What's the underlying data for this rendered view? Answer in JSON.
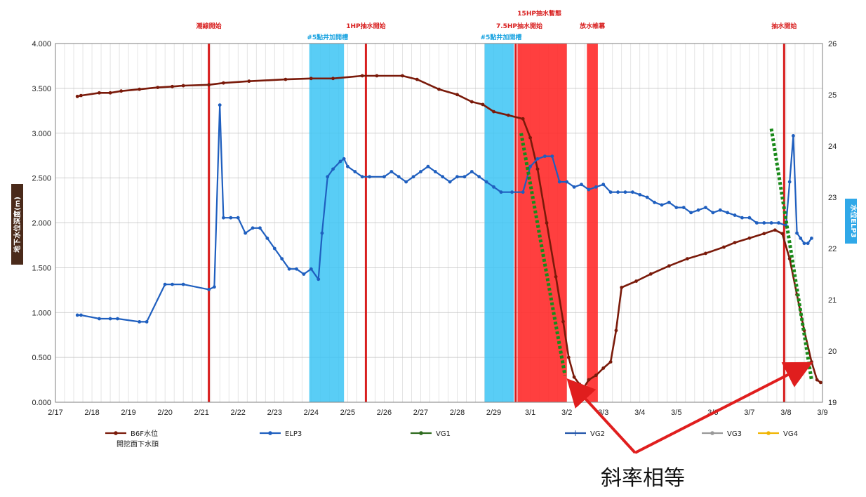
{
  "chart_data": {
    "type": "line",
    "ylabel_left": "地下水位深度(m)",
    "ylabel_right": "水位ELP3",
    "ylim_left": [
      0,
      4
    ],
    "ylim_right": [
      19,
      26
    ],
    "x_ticks": [
      "2/17",
      "2/18",
      "2/19",
      "2/20",
      "2/21",
      "2/22",
      "2/23",
      "2/24",
      "2/25",
      "2/26",
      "2/27",
      "2/28",
      "2/29",
      "3/1",
      "3/2",
      "3/3",
      "3/4",
      "3/5",
      "3/6",
      "3/7",
      "3/8",
      "3/9"
    ],
    "y_left_ticks": [
      "0.000",
      "0.500",
      "1.000",
      "1.500",
      "2.000",
      "2.500",
      "3.000",
      "3.500",
      "4.000"
    ],
    "y_right_ticks": [
      "19",
      "20",
      "21",
      "22",
      "23",
      "24",
      "25",
      "26"
    ],
    "grid": true,
    "legend_placement": "bottom",
    "colors": {
      "b6f": "#7a1a0a",
      "elp3": "#1f5fbf",
      "vg1": "#2e6b1e",
      "vg2": "#2255aa",
      "vg3": "#999999",
      "vg4": "#f0b400",
      "red_band": "#ff2a2a",
      "blue_band": "#3cc4f5",
      "event_line": "#d81e1e",
      "slope_line": "#1a8a1a",
      "arrow": "#e01e1e"
    },
    "series": [
      {
        "name": "B6F水位",
        "axis": "left",
        "points": [
          [
            0.6,
            3.41
          ],
          [
            0.7,
            3.42
          ],
          [
            1.2,
            3.45
          ],
          [
            1.5,
            3.45
          ],
          [
            1.8,
            3.47
          ],
          [
            2.3,
            3.49
          ],
          [
            2.8,
            3.51
          ],
          [
            3.2,
            3.52
          ],
          [
            3.5,
            3.53
          ],
          [
            4.2,
            3.54
          ],
          [
            4.6,
            3.56
          ],
          [
            5.3,
            3.58
          ],
          [
            6.3,
            3.6
          ],
          [
            7.0,
            3.61
          ],
          [
            7.6,
            3.61
          ],
          [
            8.4,
            3.64
          ],
          [
            8.8,
            3.64
          ],
          [
            9.5,
            3.64
          ],
          [
            9.9,
            3.6
          ],
          [
            10.5,
            3.49
          ],
          [
            11.0,
            3.43
          ],
          [
            11.4,
            3.35
          ],
          [
            11.7,
            3.32
          ],
          [
            12.0,
            3.24
          ],
          [
            12.4,
            3.2
          ],
          [
            12.8,
            3.16
          ],
          [
            13.0,
            2.95
          ],
          [
            13.2,
            2.6
          ],
          [
            13.45,
            2.0
          ],
          [
            13.7,
            1.4
          ],
          [
            13.9,
            0.9
          ],
          [
            14.05,
            0.5
          ],
          [
            14.2,
            0.28
          ],
          [
            14.35,
            0.2
          ],
          [
            14.45,
            0.15
          ],
          [
            14.6,
            0.25
          ],
          [
            14.8,
            0.3
          ],
          [
            15.0,
            0.38
          ],
          [
            15.2,
            0.45
          ],
          [
            15.35,
            0.8
          ],
          [
            15.5,
            1.28
          ],
          [
            15.9,
            1.35
          ],
          [
            16.3,
            1.43
          ],
          [
            16.8,
            1.52
          ],
          [
            17.3,
            1.6
          ],
          [
            17.8,
            1.66
          ],
          [
            18.3,
            1.73
          ],
          [
            18.6,
            1.78
          ],
          [
            19.0,
            1.83
          ],
          [
            19.4,
            1.88
          ],
          [
            19.7,
            1.92
          ],
          [
            19.9,
            1.88
          ],
          [
            20.1,
            1.6
          ],
          [
            20.3,
            1.2
          ],
          [
            20.5,
            0.8
          ],
          [
            20.7,
            0.45
          ],
          [
            20.85,
            0.25
          ],
          [
            20.95,
            0.22
          ]
        ]
      },
      {
        "name": "ELP3",
        "axis": "right",
        "points": [
          [
            0.6,
            20.7
          ],
          [
            0.7,
            20.7
          ],
          [
            1.2,
            20.63
          ],
          [
            1.5,
            20.63
          ],
          [
            1.7,
            20.63
          ],
          [
            2.3,
            20.57
          ],
          [
            2.5,
            20.57
          ],
          [
            3.0,
            21.3
          ],
          [
            3.2,
            21.3
          ],
          [
            3.5,
            21.3
          ],
          [
            4.2,
            21.2
          ],
          [
            4.35,
            21.25
          ],
          [
            4.5,
            24.8
          ],
          [
            4.6,
            22.6
          ],
          [
            4.8,
            22.6
          ],
          [
            5.0,
            22.6
          ],
          [
            5.2,
            22.3
          ],
          [
            5.4,
            22.4
          ],
          [
            5.6,
            22.4
          ],
          [
            5.8,
            22.2
          ],
          [
            6.0,
            22.0
          ],
          [
            6.2,
            21.8
          ],
          [
            6.4,
            21.6
          ],
          [
            6.6,
            21.6
          ],
          [
            6.8,
            21.5
          ],
          [
            7.0,
            21.6
          ],
          [
            7.2,
            21.4
          ],
          [
            7.3,
            22.3
          ],
          [
            7.45,
            23.4
          ],
          [
            7.6,
            23.55
          ],
          [
            7.8,
            23.7
          ],
          [
            7.9,
            23.75
          ],
          [
            8.0,
            23.6
          ],
          [
            8.2,
            23.5
          ],
          [
            8.4,
            23.4
          ],
          [
            8.6,
            23.4
          ],
          [
            9.0,
            23.4
          ],
          [
            9.2,
            23.5
          ],
          [
            9.4,
            23.4
          ],
          [
            9.6,
            23.3
          ],
          [
            9.8,
            23.4
          ],
          [
            10.0,
            23.5
          ],
          [
            10.2,
            23.6
          ],
          [
            10.4,
            23.5
          ],
          [
            10.6,
            23.4
          ],
          [
            10.8,
            23.3
          ],
          [
            11.0,
            23.4
          ],
          [
            11.2,
            23.4
          ],
          [
            11.4,
            23.5
          ],
          [
            11.6,
            23.4
          ],
          [
            11.8,
            23.3
          ],
          [
            12.0,
            23.2
          ],
          [
            12.2,
            23.1
          ],
          [
            12.5,
            23.1
          ],
          [
            12.8,
            23.1
          ],
          [
            13.0,
            23.6
          ],
          [
            13.2,
            23.75
          ],
          [
            13.4,
            23.8
          ],
          [
            13.6,
            23.8
          ],
          [
            13.8,
            23.3
          ],
          [
            14.0,
            23.3
          ],
          [
            14.2,
            23.2
          ],
          [
            14.4,
            23.25
          ],
          [
            14.6,
            23.15
          ],
          [
            14.8,
            23.2
          ],
          [
            15.0,
            23.25
          ],
          [
            15.2,
            23.1
          ],
          [
            15.4,
            23.1
          ],
          [
            15.6,
            23.1
          ],
          [
            15.8,
            23.1
          ],
          [
            16.0,
            23.05
          ],
          [
            16.2,
            23.0
          ],
          [
            16.4,
            22.9
          ],
          [
            16.6,
            22.85
          ],
          [
            16.8,
            22.9
          ],
          [
            17.0,
            22.8
          ],
          [
            17.2,
            22.8
          ],
          [
            17.4,
            22.7
          ],
          [
            17.6,
            22.75
          ],
          [
            17.8,
            22.8
          ],
          [
            18.0,
            22.7
          ],
          [
            18.2,
            22.75
          ],
          [
            18.4,
            22.7
          ],
          [
            18.6,
            22.65
          ],
          [
            18.8,
            22.6
          ],
          [
            19.0,
            22.6
          ],
          [
            19.2,
            22.5
          ],
          [
            19.4,
            22.5
          ],
          [
            19.6,
            22.5
          ],
          [
            19.8,
            22.5
          ],
          [
            20.0,
            22.45
          ],
          [
            20.1,
            23.3
          ],
          [
            20.2,
            24.2
          ],
          [
            20.3,
            22.3
          ],
          [
            20.4,
            22.2
          ],
          [
            20.5,
            22.1
          ],
          [
            20.6,
            22.1
          ],
          [
            20.7,
            22.2
          ]
        ]
      }
    ],
    "bands": [
      {
        "color": "blue",
        "start": 6.95,
        "end": 7.9
      },
      {
        "color": "blue",
        "start": 11.75,
        "end": 12.55
      },
      {
        "color": "red",
        "start": 12.65,
        "end": 14.0
      },
      {
        "color": "red",
        "start": 14.55,
        "end": 14.85
      }
    ],
    "event_lines": [
      4.2,
      8.5,
      12.6,
      19.95
    ],
    "annotations": [
      {
        "text": "潮線開始",
        "x": 4.2,
        "color": "red",
        "row": 1
      },
      {
        "text": "#5點井加開槽",
        "x": 7.45,
        "color": "blue",
        "row": 2
      },
      {
        "text": "1HP抽水開始",
        "x": 8.5,
        "color": "red",
        "row": 1
      },
      {
        "text": "15HP抽水暫態",
        "x": 13.25,
        "color": "red",
        "row": 0
      },
      {
        "text": "7.5HP抽水開始",
        "x": 12.7,
        "color": "red",
        "row": 1
      },
      {
        "text": "#5點井加開槽",
        "x": 12.2,
        "color": "blue",
        "row": 2
      },
      {
        "text": "放水帷幕",
        "x": 14.7,
        "color": "red",
        "row": 1
      },
      {
        "text": "抽水開始",
        "x": 19.95,
        "color": "red",
        "row": 1
      }
    ],
    "slope_lines": [
      {
        "from": [
          12.75,
          3.0
        ],
        "to": [
          13.95,
          0.3
        ]
      },
      {
        "from": [
          19.6,
          3.05
        ],
        "to": [
          20.7,
          0.25
        ]
      }
    ],
    "note": "斜率相等"
  },
  "legend": [
    {
      "name": "B6F水位",
      "sub": "開挖面下水頭",
      "key": "b6f"
    },
    {
      "name": "ELP3",
      "key": "elp3"
    },
    {
      "name": "VG1",
      "key": "vg1"
    },
    {
      "name": "VG2",
      "key": "vg2"
    },
    {
      "name": "VG3",
      "key": "vg3"
    },
    {
      "name": "VG4",
      "key": "vg4"
    }
  ]
}
